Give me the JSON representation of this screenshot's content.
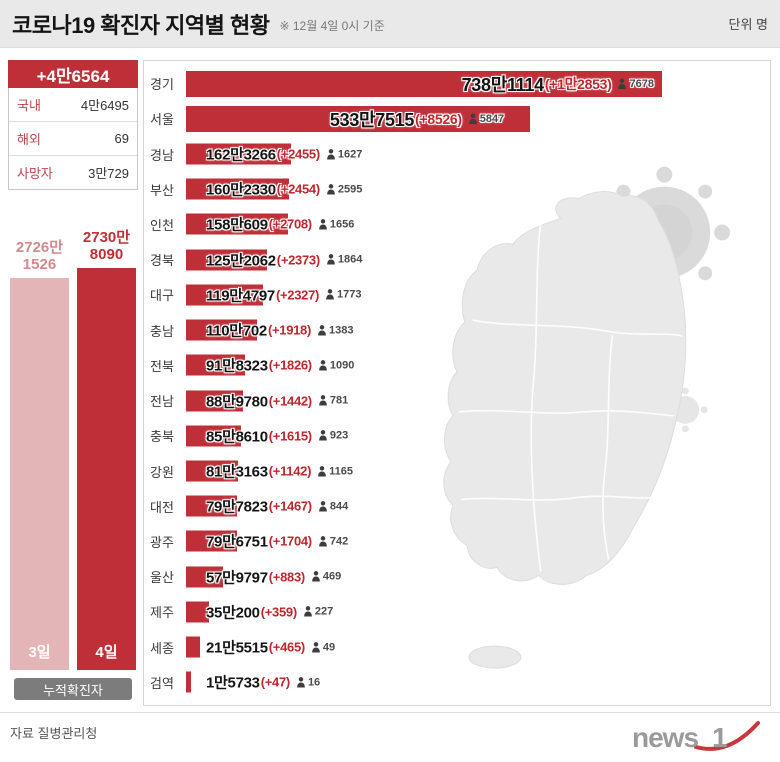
{
  "header": {
    "title": "코로나19 확진자 지역별 현황",
    "as_of": "※ 12월 4일 0시 기준",
    "unit": "단위 명"
  },
  "summary": {
    "new_total": "+4만6564",
    "stats": [
      {
        "label": "국내",
        "value": "4만6495"
      },
      {
        "label": "해외",
        "value": "69"
      },
      {
        "label": "사망자",
        "value": "3만729"
      }
    ]
  },
  "cumulative": {
    "caption": "누적확진자",
    "bars": [
      {
        "day": "3일",
        "value_top": "2726만",
        "value_bottom": "1526"
      },
      {
        "day": "4일",
        "value_top": "2730만",
        "value_bottom": "8090"
      }
    ]
  },
  "chart_data": {
    "type": "bar",
    "orientation": "horizontal",
    "title": "코로나19 확진자 지역별 현황",
    "as_of": "12월 4일 0시 기준",
    "unit": "명",
    "regions": [
      {
        "name": "경기",
        "total": "738만1114",
        "value": 7381114,
        "new": "+1만2853",
        "new_value": 12853,
        "icon_count": 7678
      },
      {
        "name": "서울",
        "total": "533만7515",
        "value": 5337515,
        "new": "+8526",
        "new_value": 8526,
        "icon_count": 5847
      },
      {
        "name": "경남",
        "total": "162만3266",
        "value": 1623266,
        "new": "+2455",
        "new_value": 2455,
        "icon_count": 1627
      },
      {
        "name": "부산",
        "total": "160만2330",
        "value": 1602330,
        "new": "+2454",
        "new_value": 2454,
        "icon_count": 2595
      },
      {
        "name": "인천",
        "total": "158만609",
        "value": 1580609,
        "new": "+2708",
        "new_value": 2708,
        "icon_count": 1656
      },
      {
        "name": "경북",
        "total": "125만2062",
        "value": 1252062,
        "new": "+2373",
        "new_value": 2373,
        "icon_count": 1864
      },
      {
        "name": "대구",
        "total": "119만4797",
        "value": 1194797,
        "new": "+2327",
        "new_value": 2327,
        "icon_count": 1773
      },
      {
        "name": "충남",
        "total": "110만702",
        "value": 1100702,
        "new": "+1918",
        "new_value": 1918,
        "icon_count": 1383
      },
      {
        "name": "전북",
        "total": "91만8323",
        "value": 918323,
        "new": "+1826",
        "new_value": 1826,
        "icon_count": 1090
      },
      {
        "name": "전남",
        "total": "88만9780",
        "value": 889780,
        "new": "+1442",
        "new_value": 1442,
        "icon_count": 781
      },
      {
        "name": "충북",
        "total": "85만8610",
        "value": 858610,
        "new": "+1615",
        "new_value": 1615,
        "icon_count": 923
      },
      {
        "name": "강원",
        "total": "81만3163",
        "value": 813163,
        "new": "+1142",
        "new_value": 1142,
        "icon_count": 1165
      },
      {
        "name": "대전",
        "total": "79만7823",
        "value": 797823,
        "new": "+1467",
        "new_value": 1467,
        "icon_count": 844
      },
      {
        "name": "광주",
        "total": "79만6751",
        "value": 796751,
        "new": "+1704",
        "new_value": 1704,
        "icon_count": 742
      },
      {
        "name": "울산",
        "total": "57만9797",
        "value": 579797,
        "new": "+883",
        "new_value": 883,
        "icon_count": 469
      },
      {
        "name": "제주",
        "total": "35만200",
        "value": 350200,
        "new": "+359",
        "new_value": 359,
        "icon_count": 227
      },
      {
        "name": "세종",
        "total": "21만5515",
        "value": 215515,
        "new": "+465",
        "new_value": 465,
        "icon_count": 49
      },
      {
        "name": "검역",
        "total": "1만5733",
        "value": 15733,
        "new": "+47",
        "new_value": 47,
        "icon_count": 16
      }
    ]
  },
  "colors": {
    "accent_red": "#bf2f38",
    "pink_bar": "#e3b5b6",
    "pink_text": "#d4888c",
    "badge_gray": "#7c7c7c"
  },
  "footer": {
    "source": "자료 질병관리청",
    "logo_text": "news1"
  }
}
